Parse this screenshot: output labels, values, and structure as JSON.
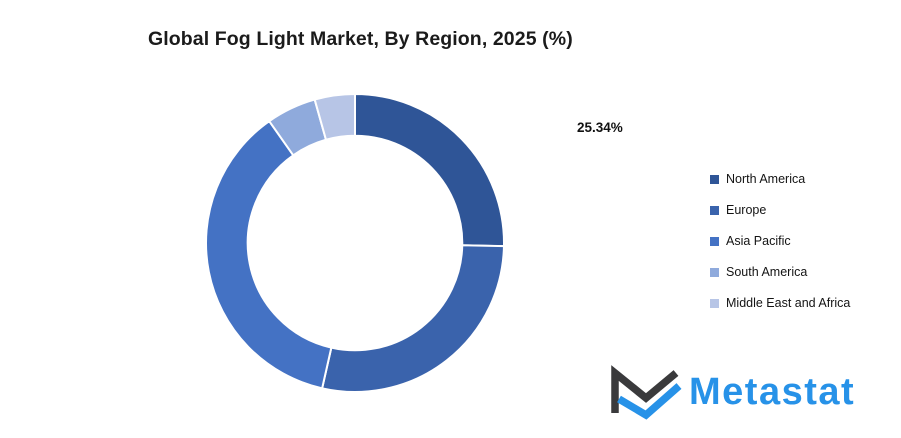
{
  "title": {
    "text": "Global Fog Light Market, By Region, 2025 (%)"
  },
  "chart_data": {
    "type": "pie",
    "subtype": "doughnut",
    "title": "Global Fog Light Market, By Region, 2025 (%)",
    "categories": [
      "North America",
      "Europe",
      "Asia Pacific",
      "South America",
      "Middle East and Africa"
    ],
    "values": [
      25.34,
      28.2,
      36.7,
      5.4,
      4.36
    ],
    "colors": [
      "#2F5597",
      "#3A63AC",
      "#4472C4",
      "#8FAADC",
      "#B7C5E6"
    ],
    "data_label": "25.34%",
    "data_label_series": "North America",
    "start_angle_deg": 0,
    "direction": "clockwise",
    "hole_ratio": 0.72,
    "legend_position": "right",
    "separator_color": "#ffffff"
  },
  "legend": {
    "items": [
      {
        "label": "North America",
        "color": "#2F5597"
      },
      {
        "label": "Europe",
        "color": "#3A63AC"
      },
      {
        "label": "Asia Pacific",
        "color": "#4472C4"
      },
      {
        "label": "South America",
        "color": "#8FAADC"
      },
      {
        "label": "Middle East and Africa",
        "color": "#B7C5E6"
      }
    ]
  },
  "logo": {
    "text": "Metastat",
    "text_color": "#2792E8",
    "mark_blue": "#2792E8",
    "mark_dark": "#3A3A3C"
  }
}
